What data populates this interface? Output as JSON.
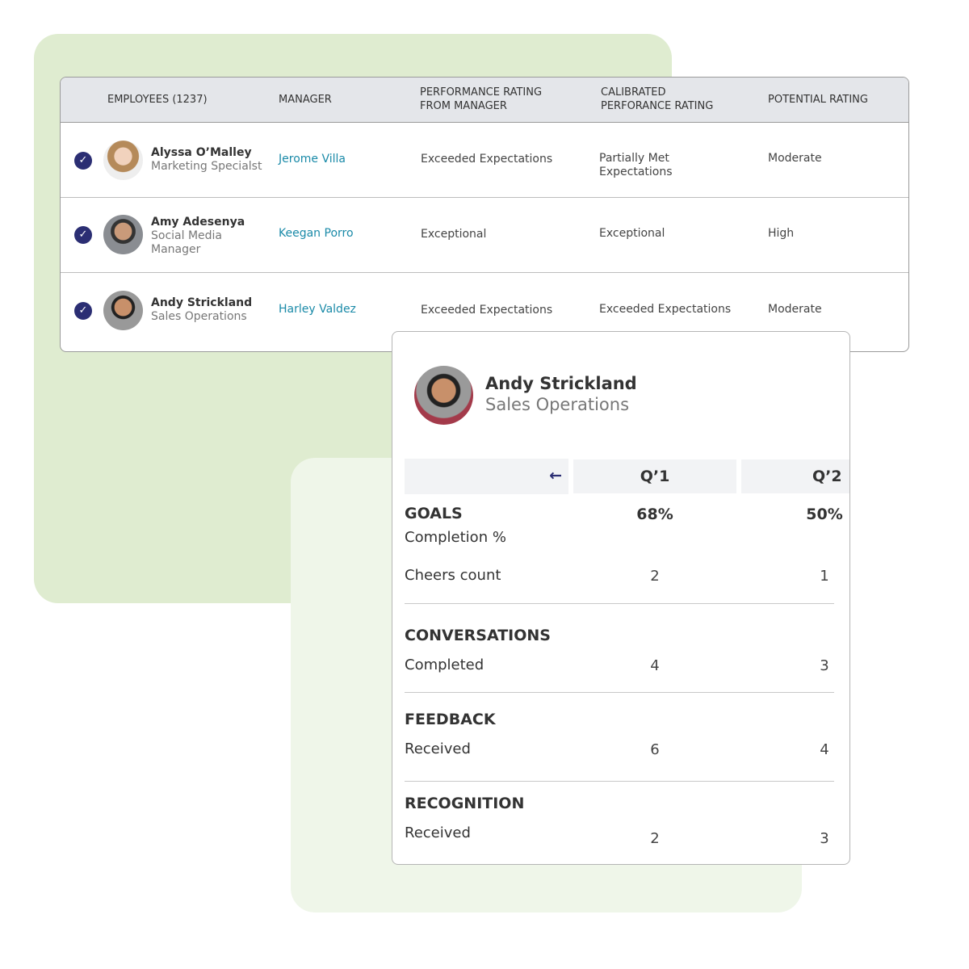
{
  "table": {
    "headers": [
      "EMPLOYEES (1237)",
      "MANAGER",
      "PERFORMANCE RATING FROM MANAGER",
      "CALIBRATED PERFORANCE RATING",
      "POTENTIAL RATING"
    ],
    "rows": [
      {
        "name": "Alyssa O’Malley",
        "role": "Marketing Specialst",
        "manager": "Jerome Villa",
        "performance": "Exceeded Expectations",
        "calibrated": "Partially Met Expectations",
        "potential": "Moderate",
        "selected": true
      },
      {
        "name": "Amy Adesenya",
        "role": "Social Media Manager",
        "manager": "Keegan Porro",
        "performance": "Exceptional",
        "calibrated": "Exceptional",
        "potential": "High",
        "selected": true
      },
      {
        "name": "Andy Strickland",
        "role": "Sales Operations",
        "manager": "Harley Valdez",
        "performance": "Exceeded Expectations",
        "calibrated": "Exceeded Expectations",
        "potential": "Moderate",
        "selected": true
      }
    ]
  },
  "popup": {
    "name": "Andy Strickland",
    "role": "Sales Operations",
    "back_icon": "arrow-left-icon",
    "columns": [
      "Q’1",
      "Q’2"
    ],
    "goals": {
      "title": "GOALS",
      "q1": "68%",
      "q2": "50%",
      "completion_label": "Completion %"
    },
    "cheers": {
      "label": "Cheers count",
      "q1": "2",
      "q2": "1"
    },
    "conversations": {
      "title": "CONVERSATIONS",
      "label": "Completed",
      "q1": "4",
      "q2": "3"
    },
    "feedback": {
      "title": "FEEDBACK",
      "label": "Received",
      "q1": "6",
      "q2": "4"
    },
    "recognition": {
      "title": "RECOGNITION",
      "label": "Received",
      "q1": "2",
      "q2": "3"
    }
  },
  "colors": {
    "accent": "#2b2e73",
    "link": "#1a8aa8",
    "green_bg": "#dfecd0"
  }
}
